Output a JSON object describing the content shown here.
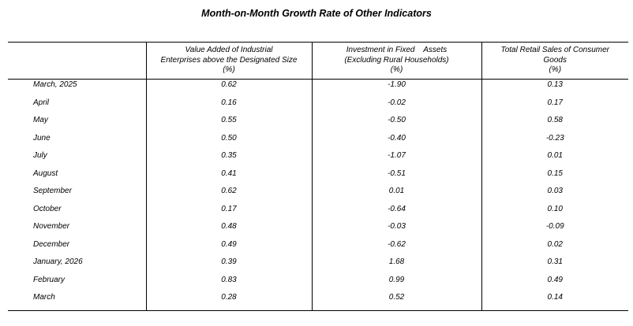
{
  "title": "Month-on-Month Growth Rate of Other Indicators",
  "columns": [
    {
      "line1": "Value Added of Industrial",
      "line2": "Enterprises above the Designated Size",
      "unit": "(%)"
    },
    {
      "line1": "Investment in Fixed    Assets",
      "line2": "(Excluding Rural Households)",
      "unit": "(%)"
    },
    {
      "line1": "Total Retail Sales of Consumer",
      "line2": "Goods",
      "unit": "(%)"
    }
  ],
  "rows": [
    {
      "period": "March, 2025",
      "industrial": "0.62",
      "investment": "-1.90",
      "retail": "0.13"
    },
    {
      "period": "April",
      "industrial": "0.16",
      "investment": "-0.02",
      "retail": "0.17"
    },
    {
      "period": "May",
      "industrial": "0.55",
      "investment": "-0.50",
      "retail": "0.58"
    },
    {
      "period": "June",
      "industrial": "0.50",
      "investment": "-0.40",
      "retail": "-0.23"
    },
    {
      "period": "July",
      "industrial": "0.35",
      "investment": "-1.07",
      "retail": "0.01"
    },
    {
      "period": "August",
      "industrial": "0.41",
      "investment": "-0.51",
      "retail": "0.15"
    },
    {
      "period": "September",
      "industrial": "0.62",
      "investment": "0.01",
      "retail": "0.03"
    },
    {
      "period": "October",
      "industrial": "0.17",
      "investment": "-0.64",
      "retail": "0.10"
    },
    {
      "period": "November",
      "industrial": "0.48",
      "investment": "-0.03",
      "retail": "-0.09"
    },
    {
      "period": "December",
      "industrial": "0.49",
      "investment": "-0.62",
      "retail": "0.02"
    },
    {
      "period": "January, 2026",
      "industrial": "0.39",
      "investment": "1.68",
      "retail": "0.31"
    },
    {
      "period": "February",
      "industrial": "0.83",
      "investment": "0.99",
      "retail": "0.49"
    },
    {
      "period": "March",
      "industrial": "0.28",
      "investment": "0.52",
      "retail": "0.14"
    }
  ]
}
